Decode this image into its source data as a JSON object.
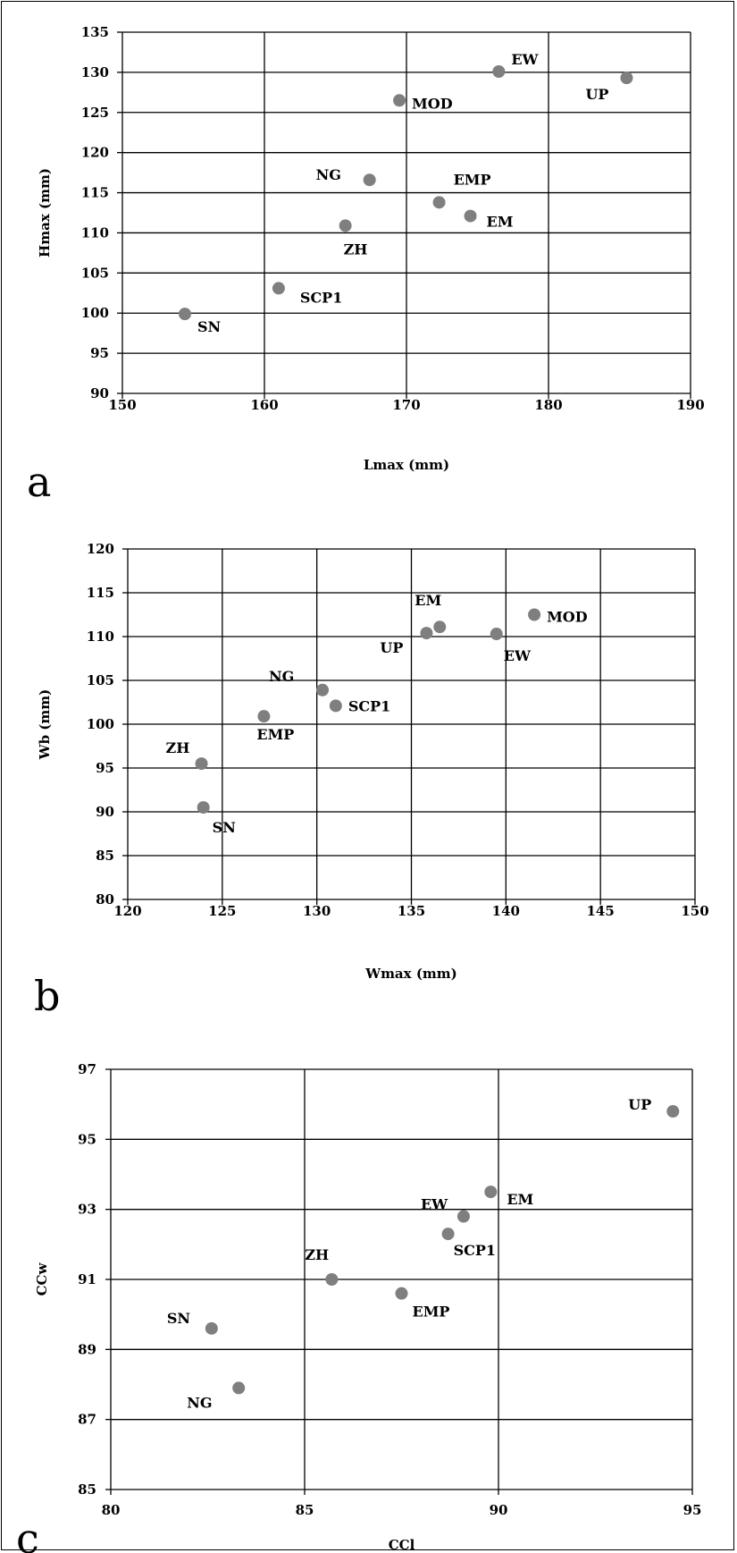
{
  "chart_data": [
    {
      "type": "scatter",
      "panel_label": "a",
      "xlabel": "Lmax (mm)",
      "ylabel": "Hmax (mm)",
      "xlim": [
        150,
        190
      ],
      "ylim": [
        90,
        135
      ],
      "xticks": [
        150,
        160,
        170,
        180,
        190
      ],
      "yticks": [
        90,
        95,
        100,
        105,
        110,
        115,
        120,
        125,
        130,
        135
      ],
      "grid": "both",
      "points": [
        {
          "label": "SN",
          "x": 154.4,
          "y": 99.9
        },
        {
          "label": "SCP1",
          "x": 161.0,
          "y": 103.1
        },
        {
          "label": "ZH",
          "x": 165.7,
          "y": 110.9
        },
        {
          "label": "NG",
          "x": 167.4,
          "y": 116.6
        },
        {
          "label": "MOD",
          "x": 169.5,
          "y": 126.5
        },
        {
          "label": "EMP",
          "x": 172.3,
          "y": 113.8
        },
        {
          "label": "EM",
          "x": 174.5,
          "y": 112.1
        },
        {
          "label": "EW",
          "x": 176.5,
          "y": 130.1
        },
        {
          "label": "UP",
          "x": 185.5,
          "y": 129.3
        }
      ]
    },
    {
      "type": "scatter",
      "panel_label": "b",
      "xlabel": "Wmax (mm)",
      "ylabel": "Wb (mm)",
      "xlim": [
        120,
        150
      ],
      "ylim": [
        80,
        120
      ],
      "xticks": [
        120,
        125,
        130,
        135,
        140,
        145,
        150
      ],
      "yticks": [
        80,
        85,
        90,
        95,
        100,
        105,
        110,
        115,
        120
      ],
      "grid": "both",
      "points": [
        {
          "label": "SN",
          "x": 124.0,
          "y": 90.5
        },
        {
          "label": "ZH",
          "x": 123.9,
          "y": 95.5
        },
        {
          "label": "EMP",
          "x": 127.2,
          "y": 100.9
        },
        {
          "label": "NG",
          "x": 130.3,
          "y": 103.9
        },
        {
          "label": "SCP1",
          "x": 131.0,
          "y": 102.1
        },
        {
          "label": "UP",
          "x": 135.8,
          "y": 110.4
        },
        {
          "label": "EM",
          "x": 136.5,
          "y": 111.1
        },
        {
          "label": "EW",
          "x": 139.5,
          "y": 110.3
        },
        {
          "label": "MOD",
          "x": 141.5,
          "y": 112.5
        }
      ]
    },
    {
      "type": "scatter",
      "panel_label": "c",
      "xlabel": "CCl",
      "ylabel": "CCw",
      "xlim": [
        80,
        95
      ],
      "ylim": [
        85,
        97
      ],
      "xticks": [
        80,
        85,
        90,
        95
      ],
      "yticks": [
        85,
        87,
        89,
        91,
        93,
        95,
        97
      ],
      "grid": "both",
      "points": [
        {
          "label": "SN",
          "x": 82.6,
          "y": 89.6
        },
        {
          "label": "NG",
          "x": 83.3,
          "y": 87.9
        },
        {
          "label": "ZH",
          "x": 85.7,
          "y": 91.0
        },
        {
          "label": "EMP",
          "x": 87.5,
          "y": 90.6
        },
        {
          "label": "SCP1",
          "x": 88.7,
          "y": 92.3
        },
        {
          "label": "EW",
          "x": 89.1,
          "y": 92.8
        },
        {
          "label": "EM",
          "x": 89.8,
          "y": 93.5
        },
        {
          "label": "UP",
          "x": 94.5,
          "y": 95.8
        }
      ]
    }
  ]
}
